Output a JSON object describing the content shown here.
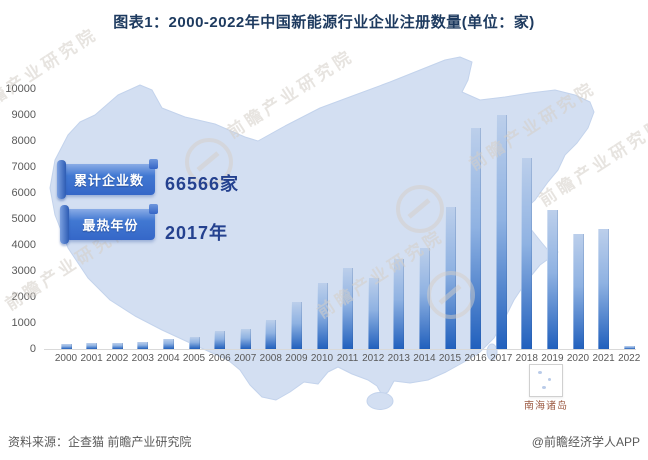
{
  "title": "图表1：2000-2022年中国新能源行业企业注册数量(单位：家)",
  "callouts": {
    "cumulative_label": "累计企业数",
    "cumulative_value": "66566家",
    "hottest_label": "最热年份",
    "hottest_value": "2017年"
  },
  "map": {
    "inset_label": "南海诸岛"
  },
  "watermark": {
    "text": "前瞻产业研究院"
  },
  "footer": {
    "source": "资料来源：企查猫 前瞻产业研究院",
    "credit": "@前瞻经济学人APP"
  },
  "chart_data": {
    "type": "bar",
    "title": "2000-2022年中国新能源行业企业注册数量",
    "unit": "家",
    "categories": [
      "2000",
      "2001",
      "2002",
      "2003",
      "2004",
      "2005",
      "2006",
      "2007",
      "2008",
      "2009",
      "2010",
      "2011",
      "2012",
      "2013",
      "2014",
      "2015",
      "2016",
      "2017",
      "2018",
      "2019",
      "2020",
      "2021",
      "2022"
    ],
    "values": [
      180,
      240,
      220,
      270,
      370,
      450,
      700,
      760,
      1120,
      1810,
      2550,
      3100,
      2730,
      3450,
      3880,
      5470,
      8490,
      9000,
      7330,
      5350,
      4420,
      4600,
      100
    ],
    "xlabel": "",
    "ylabel": "",
    "ylim": [
      0,
      10000
    ],
    "ytick_step": 1000,
    "grid": false,
    "legend": "none",
    "bar_colors": {
      "top": "#bccfeb",
      "mid": "#8fb2e2",
      "bottom": "#2160bd"
    },
    "annotations": [
      {
        "label": "累计企业数",
        "value": "66566家"
      },
      {
        "label": "最热年份",
        "value": "2017年"
      }
    ]
  }
}
